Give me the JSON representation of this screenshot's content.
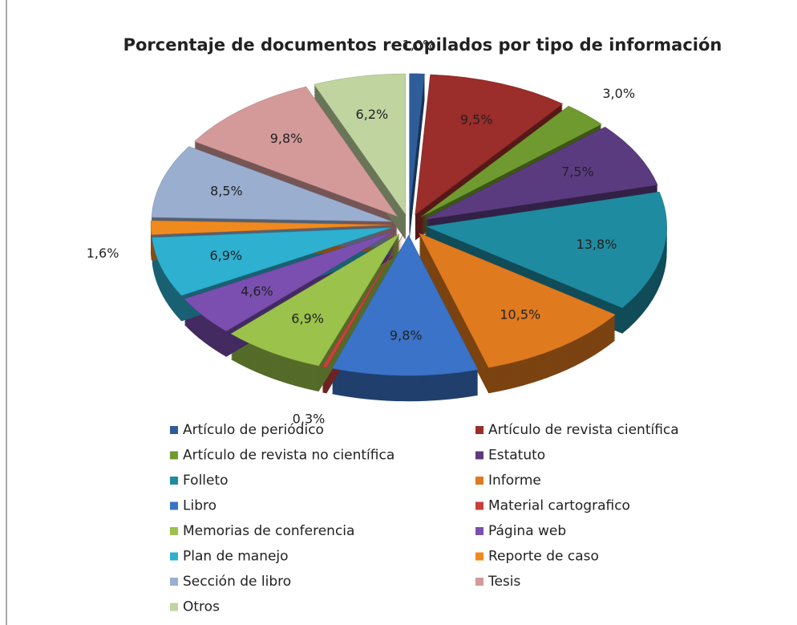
{
  "chart_data": {
    "type": "pie",
    "title": "Porcentaje de documentos recopilados por tipo de información",
    "categories": [
      "Artículo de periódico",
      "Artículo de revista científica",
      "Artículo de revista no científica",
      "Estatuto",
      "Folleto",
      "Informe",
      "Libro",
      "Material cartografico",
      "Memorias de conferencia",
      "Página web",
      "Plan de manejo",
      "Reporte de caso",
      "Sección de libro",
      "Tesis",
      "Otros"
    ],
    "values": [
      1.0,
      9.5,
      3.0,
      7.5,
      13.8,
      10.5,
      9.8,
      0.3,
      6.9,
      4.6,
      6.9,
      1.6,
      8.5,
      9.8,
      6.2
    ],
    "value_labels": [
      "1,0%",
      "9,5%",
      "3,0%",
      "7,5%",
      "13,8%",
      "10,5%",
      "9,8%",
      "0,3%",
      "6,9%",
      "4,6%",
      "6,9%",
      "1,6%",
      "8,5%",
      "9,8%",
      "6,2%"
    ],
    "colors": [
      "#2e5d9a",
      "#9b2d2a",
      "#6f9a2f",
      "#5b3b80",
      "#1f8ba0",
      "#e07a1f",
      "#3a73c7",
      "#c7403c",
      "#9bc24a",
      "#7a4fb0",
      "#2eb0d0",
      "#f08a1e",
      "#9aaed0",
      "#d49a9a",
      "#c0d4a0"
    ],
    "legend": "bottom"
  }
}
